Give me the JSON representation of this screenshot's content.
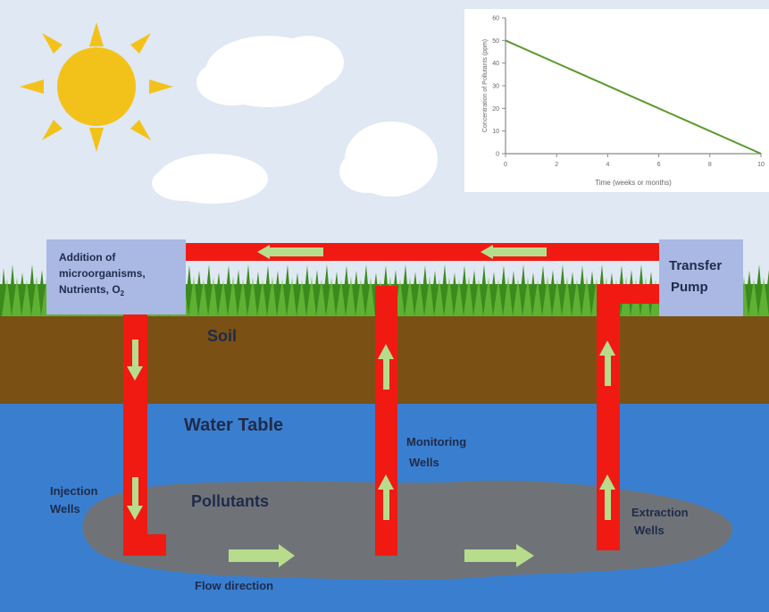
{
  "labels": {
    "addition_line1": "Addition of",
    "addition_line2": "microorganisms,",
    "addition_line3": "Nutrients, O",
    "addition_sub": "2",
    "pump_line1": "Transfer",
    "pump_line2": "Pump",
    "soil": "Soil",
    "water_table": "Water Table",
    "monitoring_line1": "Monitoring",
    "monitoring_line2": "Wells",
    "injection_line1": "Injection",
    "injection_line2": "Wells",
    "pollutants": "Pollutants",
    "extraction_line1": "Extraction",
    "extraction_line2": "Wells",
    "flow_direction": "Flow direction"
  },
  "colors": {
    "sky": "#dfe8f3",
    "grass": "#3c8a1e",
    "soil": "#7a5014",
    "water": "#3a7fcf",
    "pollutant": "#6f7377",
    "pipe": "#f01a12",
    "arrow": "#b7dd8c",
    "box": "#a9b9e4",
    "sun": "#f3c21a",
    "line": "#5a9a2e"
  },
  "chart_data": {
    "type": "line",
    "title": "",
    "xlabel": "Time (weeks or months)",
    "ylabel": "Concentration of Pollutants (ppm)",
    "x_ticks": [
      0,
      2,
      4,
      6,
      8,
      10
    ],
    "y_ticks": [
      0,
      10,
      20,
      30,
      40,
      50,
      60
    ],
    "xlim": [
      0,
      10
    ],
    "ylim": [
      0,
      60
    ],
    "series": [
      {
        "x": [
          0,
          10
        ],
        "y": [
          50,
          0
        ]
      }
    ]
  }
}
